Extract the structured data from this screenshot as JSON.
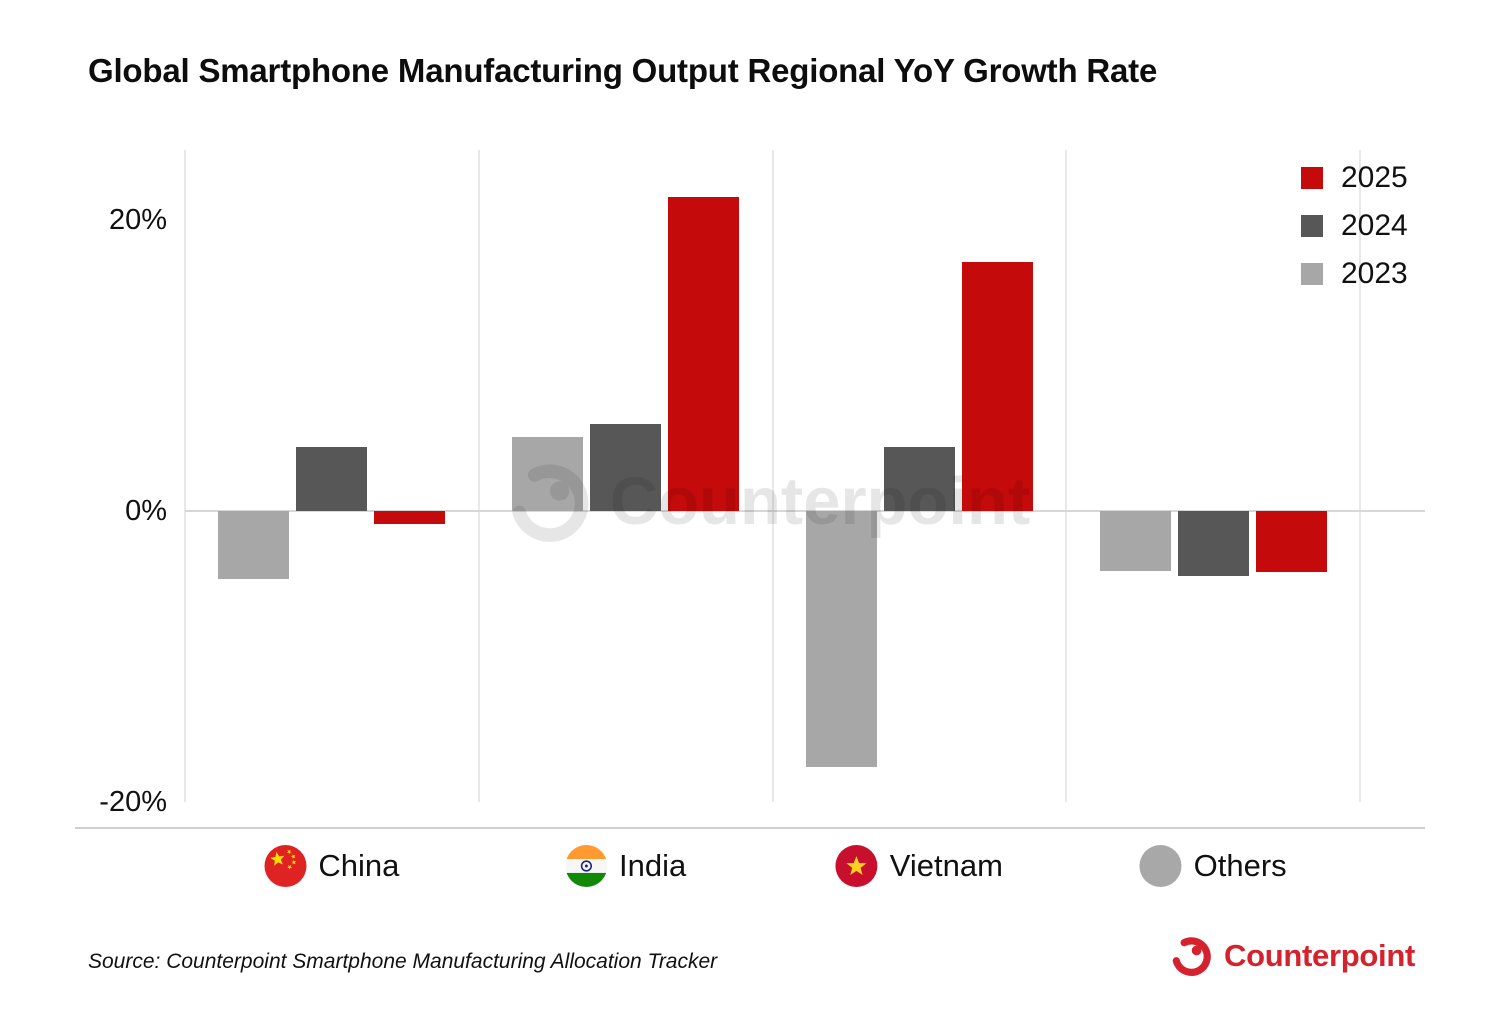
{
  "title": "Global Smartphone Manufacturing Output Regional YoY Growth Rate",
  "watermark": {
    "text": "Counterpoint"
  },
  "source": {
    "text": "Source: Counterpoint Smartphone Manufacturing Allocation Tracker"
  },
  "brand": {
    "name": "Counterpoint",
    "color": "#d4232e"
  },
  "legend": {
    "items": [
      "2025",
      "2024",
      "2023"
    ]
  },
  "chart_data": {
    "type": "bar",
    "title": "Global Smartphone Manufacturing Output Regional YoY Growth Rate",
    "unit": "%",
    "categories": [
      "China",
      "India",
      "Vietnam",
      "Others"
    ],
    "category_icons": [
      "china-flag-icon",
      "india-flag-icon",
      "vietnam-flag-icon",
      "others-circle-icon"
    ],
    "series": [
      {
        "name": "2023",
        "color": "#a7a7a7",
        "values": [
          -4.7,
          5.1,
          -17.6,
          -4.1
        ]
      },
      {
        "name": "2024",
        "color": "#575757",
        "values": [
          4.4,
          6.0,
          4.4,
          -4.5
        ]
      },
      {
        "name": "2025",
        "color": "#c40a0a",
        "values": [
          -0.9,
          21.6,
          17.1,
          -4.2
        ]
      }
    ],
    "legend_order": [
      2,
      1,
      0
    ],
    "yticks": [
      {
        "value": 20,
        "label": "20%"
      },
      {
        "value": 0,
        "label": "0%"
      },
      {
        "value": -20,
        "label": "-20%"
      }
    ],
    "ylim": [
      -24.8,
      24.8
    ],
    "grid": "vertical-only",
    "legend_position": "top-right",
    "xlabel": "",
    "ylabel": ""
  }
}
